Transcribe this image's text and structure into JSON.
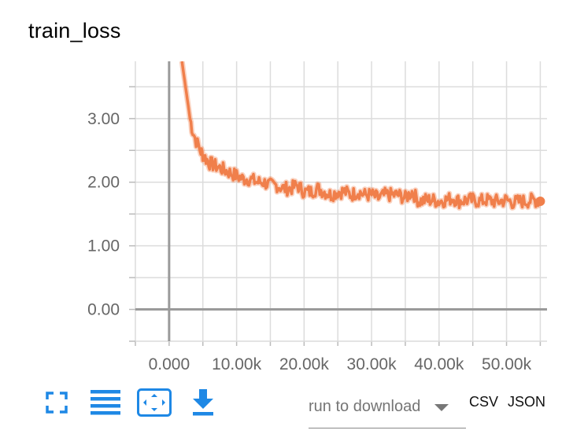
{
  "chart_data": {
    "type": "line",
    "title": "train_loss",
    "xlabel": "",
    "ylabel": "",
    "xlim": [
      -5000,
      56000
    ],
    "ylim": [
      -0.5,
      3.9
    ],
    "x_ticks": [
      0,
      10000,
      20000,
      30000,
      40000,
      50000
    ],
    "x_tick_labels": [
      "0.000",
      "10.00k",
      "20.00k",
      "30.00k",
      "40.00k",
      "50.00k"
    ],
    "y_ticks": [
      0,
      1,
      2,
      3
    ],
    "y_tick_labels": [
      "0.00",
      "1.00",
      "2.00",
      "3.00"
    ],
    "grid": true,
    "legend": "none",
    "series": [
      {
        "color": "#f07f4b",
        "x": [
          1900,
          2300,
          2700,
          3100,
          3500,
          4000,
          4600,
          5200,
          6000,
          7000,
          8000,
          9000,
          10000,
          11000,
          12000,
          13000,
          14000,
          15000,
          16000,
          17000,
          18000,
          19000,
          20000,
          21000,
          22000,
          23000,
          24000,
          25000,
          26000,
          27000,
          28000,
          29000,
          30000,
          31000,
          32000,
          33000,
          34000,
          35000,
          36000,
          37000,
          38000,
          39000,
          40000,
          41000,
          42000,
          43000,
          44000,
          45000,
          46000,
          47000,
          48000,
          49000,
          50000,
          51000,
          52000,
          53000,
          54000,
          55000
        ],
        "y": [
          3.9,
          3.6,
          3.3,
          3.0,
          2.8,
          2.65,
          2.5,
          2.4,
          2.3,
          2.25,
          2.2,
          2.15,
          2.1,
          2.05,
          2.05,
          2.0,
          2.0,
          1.95,
          1.95,
          1.9,
          1.9,
          1.95,
          1.85,
          1.85,
          1.9,
          1.85,
          1.8,
          1.85,
          1.85,
          1.8,
          1.85,
          1.8,
          1.8,
          1.75,
          1.8,
          1.8,
          1.8,
          1.75,
          1.85,
          1.7,
          1.72,
          1.72,
          1.7,
          1.72,
          1.75,
          1.7,
          1.72,
          1.72,
          1.7,
          1.72,
          1.7,
          1.7,
          1.72,
          1.68,
          1.7,
          1.7,
          1.72,
          1.7
        ]
      }
    ]
  },
  "toolbar": {
    "icons": [
      "fullscreen-icon",
      "list-icon",
      "fit-domain-icon",
      "download-icon"
    ],
    "accent": "#1e88e5"
  },
  "download": {
    "placeholder": "run to download",
    "csv": "CSV",
    "json": "JSON"
  }
}
